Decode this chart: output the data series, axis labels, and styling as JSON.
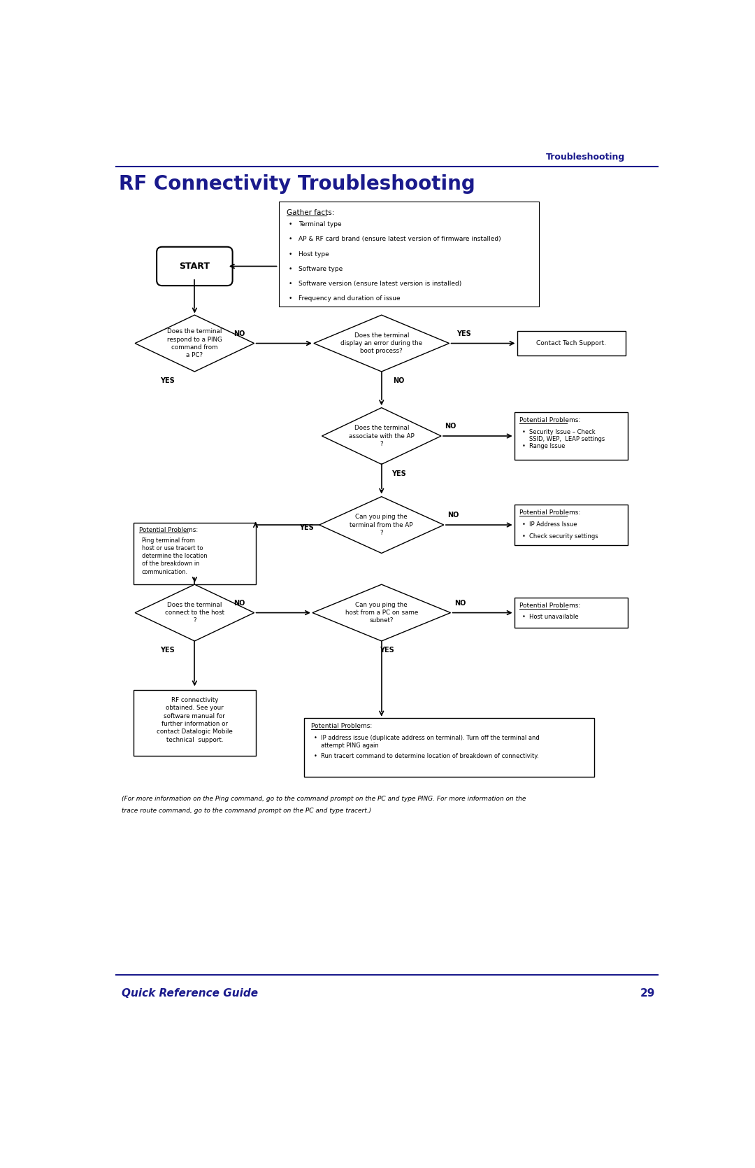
{
  "page_title": "RF Connectivity Troubleshooting",
  "header_label": "Troubleshooting",
  "footer_label": "Quick Reference Guide",
  "footer_page": "29",
  "dark_blue": "#1a1a8c",
  "black": "#000000",
  "white": "#ffffff",
  "gather_facts_title": "Gather facts:",
  "gather_facts_items": [
    "Terminal type",
    "AP & RF card brand (ensure latest version of firmware installed)",
    "Host type",
    "Software type",
    "Software version (ensure latest version is installed)",
    "Frequency and duration of issue"
  ],
  "start_label": "START",
  "diamond1_label": "Does the terminal\nrespond to a PING\ncommand from\na PC?",
  "diamond1_yes": "YES",
  "diamond1_no": "NO",
  "diamond2_label": "Does the terminal\ndisplay an error during the\nboot process?",
  "diamond2_yes": "YES",
  "diamond2_no": "NO",
  "box_tech_support": "Contact Tech Support.",
  "diamond3_label": "Does the terminal\nassociate with the AP\n?",
  "diamond3_no": "NO",
  "diamond3_yes": "YES",
  "box_potential1_title": "Potential Problems:",
  "box_potential1_items": [
    "Security Issue – Check\nSSID, WEP,  LEAP settings",
    "Range Issue"
  ],
  "diamond4_label": "Can you ping the\nterminal from the AP\n?",
  "diamond4_no": "NO",
  "diamond4_yes": "YES",
  "box_potential2_title": "Potential Problems:",
  "box_potential2_text": "Ping terminal from\nhost or use tracert to\ndetermine the location\nof the breakdown in\ncommunication.",
  "box_potential3_title": "Potential Problems:",
  "box_potential3_items": [
    "IP Address Issue",
    "Check security settings"
  ],
  "diamond5_label": "Does the terminal\nconnect to the host\n?",
  "diamond5_no": "NO",
  "diamond5_yes": "YES",
  "diamond6_label": "Can you ping the\nhost from a PC on same\nsubnet?",
  "diamond6_no": "NO",
  "diamond6_yes": "YES",
  "box_potential4_title": "Potential Problems:",
  "box_potential4_items": [
    "Host unavailable"
  ],
  "box_rf_title": "RF connectivity\nobtained. See your\nsoftware manual for\nfurther information or\ncontact Datalogic Mobile\ntechnical  support.",
  "box_potential5_title": "Potential Problems:",
  "box_potential5_items": [
    "IP address issue (duplicate address on terminal). Turn off the terminal and\nattempt PING again",
    "Run tracert command to determine location of breakdown of connectivity."
  ],
  "footnote_line1": "For more information on the Ping command, go to the command prompt on the PC and type PING. For more information on the",
  "footnote_line2": "trace route command, go to the command prompt on the PC and type tracert."
}
